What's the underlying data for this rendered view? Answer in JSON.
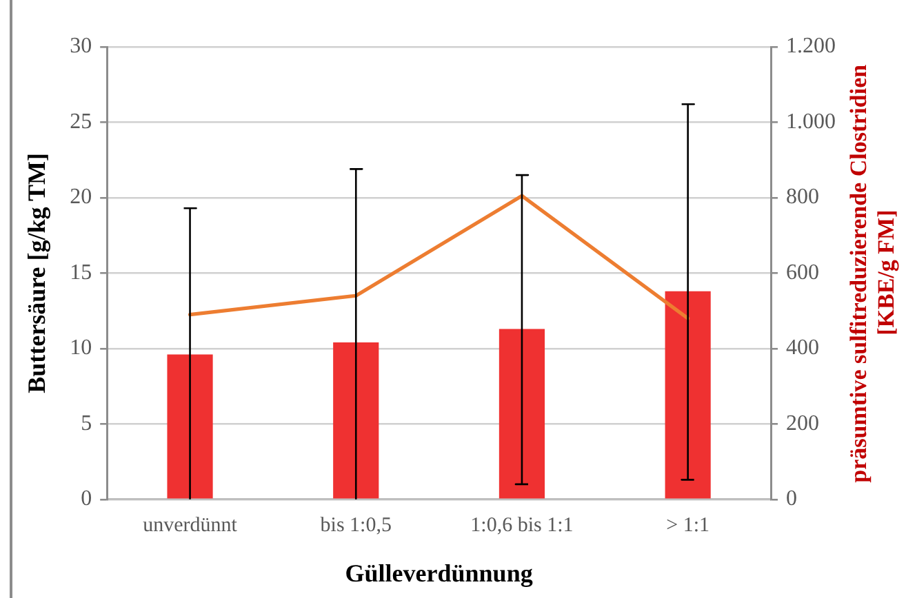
{
  "chart_data": {
    "type": "bar",
    "xlabel": "Gülleverdünnung",
    "ylabel": "Buttersäure [g/kg TM]",
    "y2label": "präsumtive sulfitreduzierende Clostridien [KBE/g FM]",
    "categories": [
      "unverdünnt",
      "bis 1:0,5",
      "1:0,6 bis 1:1",
      "> 1:1"
    ],
    "series": [
      {
        "color": "#ef3131",
        "values": [
          9.6,
          10.4,
          11.3,
          13.8
        ],
        "errors": [
          [
            0,
            19.3
          ],
          [
            0,
            21.9
          ],
          [
            1.0,
            21.5
          ],
          [
            1.3,
            26.2
          ]
        ]
      },
      {
        "type": "line",
        "axis": "y2",
        "color": "#ed7d31",
        "values": [
          490,
          540,
          805,
          480
        ],
        "marker": "none"
      }
    ],
    "ylim": [
      0,
      30
    ],
    "yticks": [
      0,
      5,
      10,
      15,
      20,
      25,
      30
    ],
    "y2lim": [
      0,
      1200
    ],
    "y2ticks": [
      0,
      200,
      400,
      600,
      800,
      {
        "value": 1000,
        "label": "1.000"
      },
      {
        "value": 1200,
        "label": "1.200"
      }
    ],
    "grid": "y",
    "legend": false
  }
}
